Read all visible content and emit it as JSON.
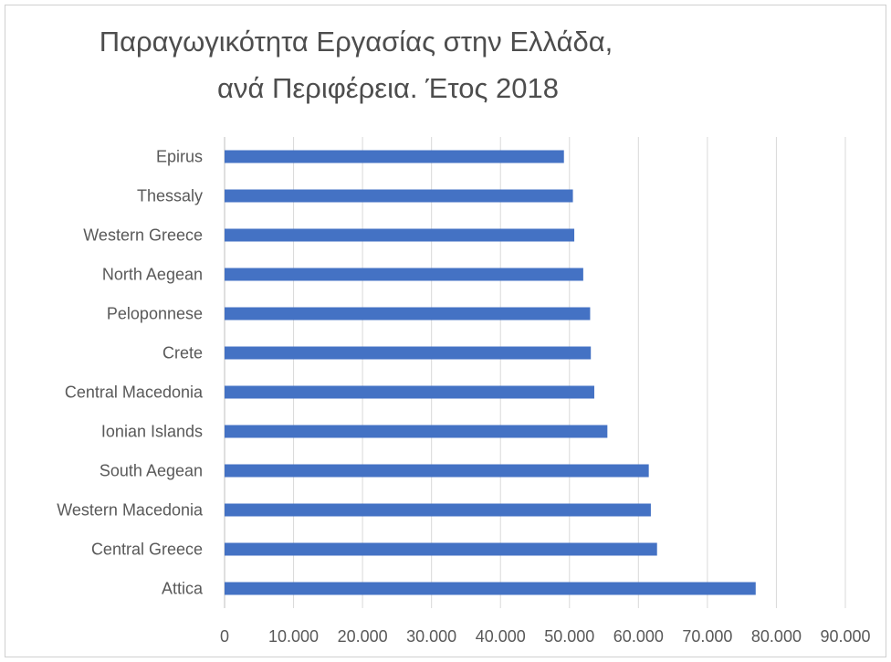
{
  "chart_data": {
    "type": "bar",
    "orientation": "horizontal",
    "title_lines": [
      "Παραγωγικότητα Εργασίας στην Ελλάδα,",
      "ανά Περιφέρεια. Έτος 2018"
    ],
    "categories": [
      "Epirus",
      "Thessaly",
      "Western Greece",
      "North Aegean",
      "Peloponnese",
      "Crete",
      "Central Macedonia",
      "Ionian Islands",
      "South Aegean",
      "Western Macedonia",
      "Central Greece",
      "Attica"
    ],
    "values": [
      49200,
      50500,
      50700,
      52000,
      53000,
      53100,
      53600,
      55500,
      61500,
      61800,
      62700,
      77000
    ],
    "xlim": [
      0,
      90000
    ],
    "x_ticks": [
      0,
      10000,
      20000,
      30000,
      40000,
      50000,
      60000,
      70000,
      80000,
      90000
    ],
    "x_tick_labels": [
      "0",
      "10.000",
      "20.000",
      "30.000",
      "40.000",
      "50.000",
      "60.000",
      "70.000",
      "80.000",
      "90.000"
    ],
    "grid": true,
    "legend": "none",
    "colors": {
      "bar": "#4472C4",
      "grid": "#d9d9d9",
      "axis": "#bfbfbf",
      "text": "#595959"
    }
  }
}
